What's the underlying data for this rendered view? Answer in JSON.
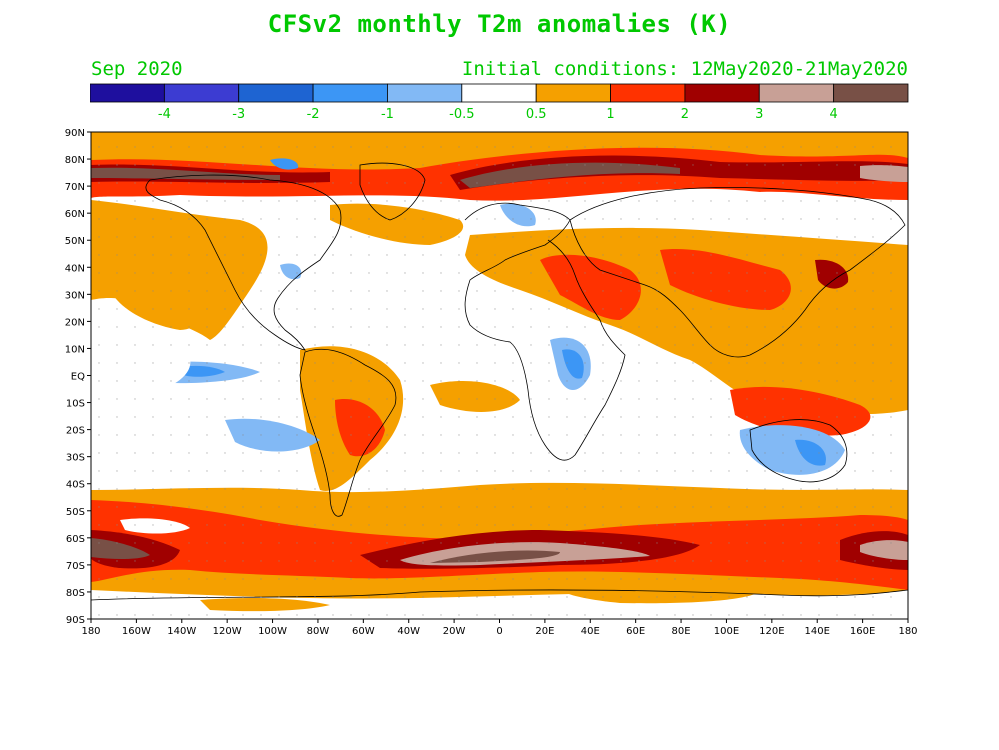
{
  "header": {
    "title": "CFSv2 monthly T2m anomalies (K)",
    "month": "Sep 2020",
    "init": "Initial conditions: 12May2020-21May2020"
  },
  "colorbar": {
    "colors": [
      "#1e0f9e",
      "#3c3cd2",
      "#1e64d2",
      "#3c96f5",
      "#82b9f5",
      "#ffffff",
      "#f5a000",
      "#ff3200",
      "#a00000",
      "#c8a096",
      "#785046"
    ],
    "labels": [
      "-4",
      "-3",
      "-2",
      "-1",
      "-0.5",
      "0.5",
      "1",
      "2",
      "3",
      "4"
    ]
  },
  "axes": {
    "lat_labels": [
      "90N",
      "80N",
      "70N",
      "60N",
      "50N",
      "40N",
      "30N",
      "20N",
      "10N",
      "EQ",
      "10S",
      "20S",
      "30S",
      "40S",
      "50S",
      "60S",
      "70S",
      "80S",
      "90S"
    ],
    "lon_labels": [
      "180",
      "160W",
      "140W",
      "120W",
      "100W",
      "80W",
      "60W",
      "40W",
      "20W",
      "0",
      "20E",
      "40E",
      "60E",
      "80E",
      "100E",
      "120E",
      "140E",
      "160E",
      "180"
    ]
  }
}
